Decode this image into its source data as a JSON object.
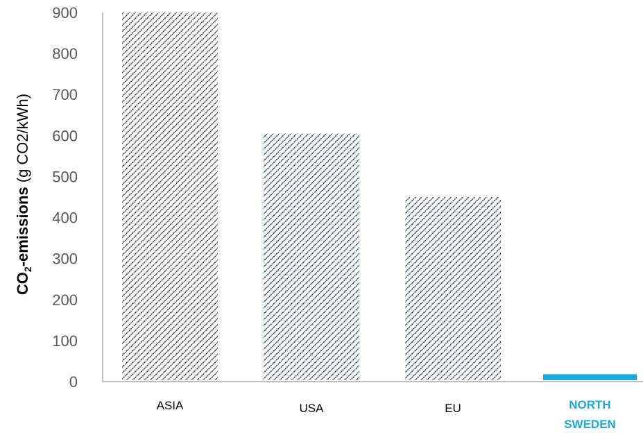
{
  "colors": {
    "asia": "#3a3a3a",
    "usa": "#1f3f5a",
    "eu": "#1f3f5a",
    "north_sweden": "#1aa7dc",
    "axis": "#7f7f7f",
    "tick_text": "#595959"
  },
  "chart_data": {
    "type": "bar",
    "categories": [
      "ASIA",
      "USA",
      "EU",
      "NORTH SWEDEN"
    ],
    "category_lines": [
      [
        "ASIA"
      ],
      [
        "USA"
      ],
      [
        "EU"
      ],
      [
        "NORTH",
        "SWEDEN"
      ]
    ],
    "values": [
      900,
      605,
      450,
      18
    ],
    "fills": [
      "hatch-dark",
      "hatch-navy",
      "hatch-navy",
      "solid-cyan"
    ],
    "highlight_category": "NORTH SWEDEN",
    "ylim": [
      0,
      900
    ],
    "yticks": [
      0,
      100,
      200,
      300,
      400,
      500,
      600,
      700,
      800,
      900
    ],
    "ylabel_bold": "CO",
    "ylabel_sub": "2",
    "ylabel_bold_rest": "-emissions",
    "ylabel_rest": " (g CO2/kWh)",
    "grid": false,
    "title": "",
    "xlabel": ""
  }
}
